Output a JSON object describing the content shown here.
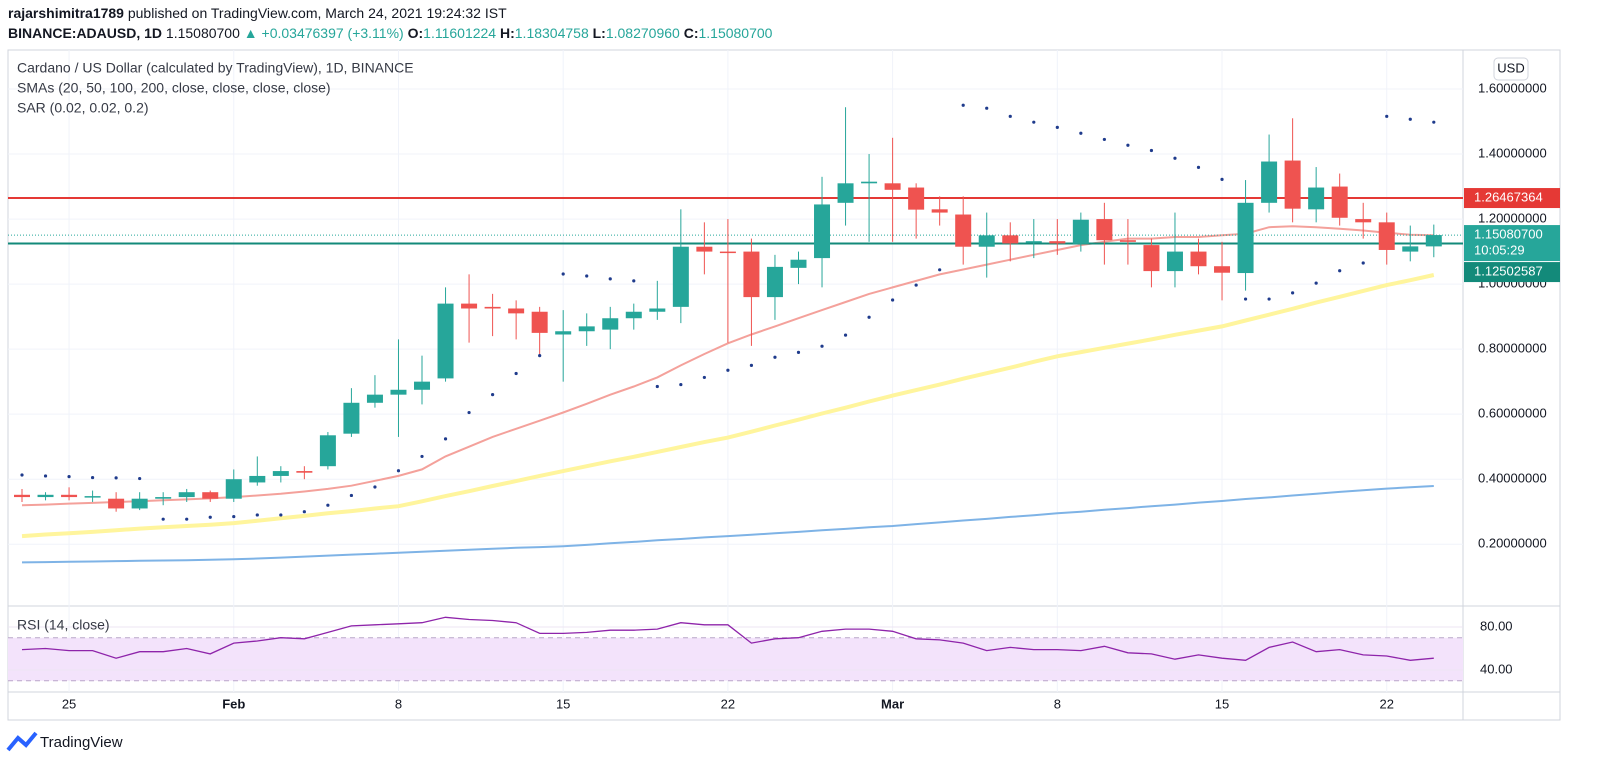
{
  "header": {
    "author": "rajarshimitra1789",
    "published": "published on TradingView.com, March 24, 2021 19:24:32 IST",
    "symbol": "BINANCE:ADAUSD, 1D",
    "last": "1.15080700",
    "arrow": "▲",
    "change": "+0.03476397 (+3.11%)",
    "o_label": "O:",
    "o": "1.11601224",
    "h_label": "H:",
    "h": "1.18304758",
    "l_label": "L:",
    "l": "1.08270960",
    "c_label": "C:",
    "c": "1.15080700"
  },
  "currency": "USD",
  "footer": {
    "brand": "TradingView"
  },
  "chart_data": [
    {
      "type": "candlestick",
      "title": "Cardano / US Dollar (calculated by TradingView), 1D, BINANCE",
      "indicators": [
        "SMAs (20, 50, 100, 200, close, close, close, close)",
        "SAR (0.02, 0.02, 0.2)"
      ],
      "categories": [
        null,
        null,
        "25",
        null,
        null,
        null,
        null,
        null,
        null,
        "Feb",
        null,
        null,
        null,
        null,
        null,
        null,
        "8",
        null,
        null,
        null,
        null,
        null,
        null,
        "15",
        null,
        null,
        null,
        null,
        null,
        null,
        "22",
        null,
        null,
        null,
        null,
        null,
        null,
        "Mar",
        null,
        null,
        null,
        null,
        null,
        null,
        "8",
        null,
        null,
        null,
        null,
        null,
        null,
        "15",
        null,
        null,
        null,
        null,
        null,
        null,
        "22",
        null,
        null
      ],
      "open": [
        0.352,
        0.345,
        0.352,
        0.345,
        0.34,
        0.31,
        0.34,
        0.345,
        0.36,
        0.34,
        0.39,
        0.41,
        0.425,
        0.44,
        0.54,
        0.635,
        0.66,
        0.675,
        0.71,
        0.94,
        0.93,
        0.925,
        0.915,
        0.845,
        0.855,
        0.86,
        0.895,
        0.915,
        0.93,
        1.115,
        1.1,
        1.1,
        0.96,
        1.05,
        1.08,
        1.25,
        1.31,
        1.31,
        1.297,
        1.23,
        1.214,
        1.115,
        1.15,
        1.13,
        1.132,
        1.124,
        1.2,
        1.135,
        1.12,
        1.04,
        1.1,
        1.055,
        1.034,
        1.25,
        1.38,
        1.23,
        1.3,
        1.2,
        1.19,
        1.1,
        1.11601224
      ],
      "high": [
        0.37,
        0.36,
        0.375,
        0.365,
        0.36,
        0.36,
        0.36,
        0.37,
        0.365,
        0.43,
        0.47,
        0.44,
        0.44,
        0.545,
        0.68,
        0.72,
        0.83,
        0.78,
        0.99,
        1.03,
        0.97,
        0.95,
        0.93,
        0.92,
        0.91,
        0.93,
        0.94,
        1.01,
        1.23,
        1.19,
        1.2,
        1.14,
        1.09,
        1.1,
        1.33,
        1.544,
        1.4,
        1.45,
        1.31,
        1.27,
        1.27,
        1.22,
        1.19,
        1.2,
        1.2,
        1.22,
        1.25,
        1.2,
        1.14,
        1.22,
        1.14,
        1.13,
        1.32,
        1.46,
        1.51,
        1.36,
        1.34,
        1.25,
        1.22,
        1.18,
        1.18304758
      ],
      "low": [
        0.33,
        0.335,
        0.335,
        0.33,
        0.3,
        0.305,
        0.32,
        0.33,
        0.33,
        0.33,
        0.38,
        0.39,
        0.4,
        0.43,
        0.53,
        0.62,
        0.53,
        0.63,
        0.7,
        0.82,
        0.84,
        0.83,
        0.78,
        0.7,
        0.81,
        0.8,
        0.86,
        0.89,
        0.88,
        1.03,
        0.82,
        0.81,
        0.89,
        1.0,
        0.99,
        1.18,
        1.13,
        1.13,
        1.14,
        1.18,
        1.06,
        1.02,
        1.07,
        1.08,
        1.09,
        1.1,
        1.06,
        1.06,
        0.99,
        0.99,
        1.03,
        0.95,
        0.98,
        1.22,
        1.19,
        1.19,
        1.18,
        1.14,
        1.06,
        1.07,
        1.0827096
      ],
      "close": [
        0.345,
        0.352,
        0.345,
        0.348,
        0.31,
        0.34,
        0.345,
        0.36,
        0.34,
        0.4,
        0.41,
        0.425,
        0.42,
        0.535,
        0.635,
        0.66,
        0.675,
        0.7,
        0.94,
        0.925,
        0.925,
        0.91,
        0.85,
        0.855,
        0.87,
        0.895,
        0.915,
        0.925,
        1.115,
        1.1,
        1.098,
        0.96,
        1.053,
        1.075,
        1.245,
        1.31,
        1.315,
        1.29,
        1.229,
        1.22,
        1.115,
        1.15,
        1.125,
        1.132,
        1.125,
        1.198,
        1.135,
        1.13,
        1.04,
        1.1,
        1.055,
        1.035,
        1.25,
        1.377,
        1.232,
        1.297,
        1.204,
        1.19,
        1.105,
        1.116,
        1.150807
      ],
      "up_color": "#26a69a",
      "down_color": "#ef5350",
      "series": [
        {
          "type": "line",
          "color": "#f4a19b",
          "width": 2,
          "values": [
            0.32,
            0.322,
            0.325,
            0.327,
            0.33,
            0.332,
            0.335,
            0.338,
            0.341,
            0.345,
            0.35,
            0.355,
            0.362,
            0.37,
            0.38,
            0.395,
            0.41,
            0.43,
            0.47,
            0.5,
            0.53,
            0.555,
            0.58,
            0.605,
            0.632,
            0.66,
            0.685,
            0.713,
            0.75,
            0.785,
            0.818,
            0.845,
            0.87,
            0.895,
            0.92,
            0.945,
            0.97,
            0.99,
            1.01,
            1.03,
            1.045,
            1.06,
            1.075,
            1.09,
            1.105,
            1.12,
            1.13,
            1.14,
            1.14,
            1.145,
            1.145,
            1.15,
            1.155,
            1.175,
            1.178,
            1.175,
            1.17,
            1.165,
            1.158,
            1.152,
            1.15
          ]
        },
        {
          "type": "line",
          "color": "#fff59d",
          "width": 4,
          "values": [
            0.225,
            0.23,
            0.234,
            0.238,
            0.243,
            0.248,
            0.252,
            0.256,
            0.26,
            0.265,
            0.272,
            0.28,
            0.287,
            0.295,
            0.302,
            0.31,
            0.317,
            0.332,
            0.348,
            0.363,
            0.379,
            0.394,
            0.41,
            0.425,
            0.44,
            0.455,
            0.469,
            0.484,
            0.499,
            0.514,
            0.528,
            0.546,
            0.565,
            0.583,
            0.602,
            0.62,
            0.639,
            0.657,
            0.674,
            0.691,
            0.709,
            0.726,
            0.743,
            0.761,
            0.778,
            0.791,
            0.804,
            0.817,
            0.83,
            0.844,
            0.857,
            0.87,
            0.888,
            0.906,
            0.924,
            0.943,
            0.961,
            0.979,
            0.997,
            1.012,
            1.028
          ]
        },
        {
          "type": "line",
          "color": "#7eb3e6",
          "width": 2,
          "values": [
            0.144,
            0.145,
            0.146,
            0.147,
            0.148,
            0.149,
            0.15,
            0.151,
            0.152,
            0.154,
            0.156,
            0.159,
            0.162,
            0.165,
            0.168,
            0.171,
            0.174,
            0.177,
            0.18,
            0.183,
            0.186,
            0.189,
            0.191,
            0.194,
            0.198,
            0.203,
            0.207,
            0.212,
            0.216,
            0.221,
            0.225,
            0.229,
            0.234,
            0.238,
            0.243,
            0.247,
            0.252,
            0.256,
            0.262,
            0.267,
            0.273,
            0.278,
            0.284,
            0.289,
            0.295,
            0.3,
            0.306,
            0.311,
            0.317,
            0.322,
            0.328,
            0.333,
            0.339,
            0.344,
            0.35,
            0.355,
            0.361,
            0.366,
            0.371,
            0.375,
            0.379
          ]
        },
        {
          "type": "dots",
          "color": "#1f3b8c",
          "values": [
            0.413,
            0.41,
            0.408,
            0.405,
            0.404,
            0.402,
            0.277,
            0.277,
            0.283,
            0.285,
            0.29,
            0.29,
            0.3,
            0.32,
            0.35,
            0.376,
            0.426,
            0.47,
            0.524,
            0.605,
            0.66,
            0.725,
            0.78,
            1.031,
            1.025,
            1.016,
            1.01,
            0.685,
            0.691,
            0.713,
            0.735,
            0.75,
            0.775,
            0.79,
            0.809,
            0.843,
            0.898,
            0.951,
            0.997,
            1.044,
            1.55,
            1.541,
            1.516,
            1.498,
            1.482,
            1.464,
            1.445,
            1.427,
            1.411,
            1.387,
            1.359,
            1.322,
            0.954,
            0.954,
            0.973,
            1.003,
            1.041,
            1.065,
            1.516,
            1.507,
            1.498
          ]
        }
      ],
      "hlines": [
        {
          "value": 1.26467364,
          "color": "#e53935"
        },
        {
          "value": 1.12502587,
          "color": "#138a7a"
        }
      ],
      "price_label": {
        "value": 1.150807,
        "label": "1.15080700",
        "countdown": "10:05:29",
        "color": "#26a69a"
      },
      "ylim": [
        0.01,
        1.72
      ],
      "yticks": [
        {
          "value": 0.2,
          "label": "0.20000000"
        },
        {
          "value": 0.4,
          "label": "0.40000000"
        },
        {
          "value": 0.6,
          "label": "0.60000000"
        },
        {
          "value": 0.8,
          "label": "0.80000000"
        },
        {
          "value": 1.0,
          "label": "1.00000000"
        },
        {
          "value": 1.2,
          "label": "1.20000000"
        },
        {
          "value": 1.4,
          "label": "1.40000000"
        },
        {
          "value": 1.6,
          "label": "1.60000000"
        }
      ],
      "grid": true
    },
    {
      "type": "line",
      "title": "RSI (14, close)",
      "color": "#8e24aa",
      "values": [
        59,
        60,
        58,
        58,
        51,
        57,
        57,
        60,
        55,
        65,
        67,
        70,
        69,
        75,
        81,
        82,
        83,
        84,
        89,
        87,
        86,
        84,
        74,
        74,
        75,
        77,
        77,
        78,
        84,
        82,
        82,
        65,
        69,
        70,
        76,
        78,
        78,
        76,
        69,
        68,
        65,
        58,
        61,
        59,
        59,
        58,
        62,
        56,
        55,
        50,
        54,
        51,
        49,
        61,
        66,
        57,
        59,
        54,
        53,
        49,
        51
      ],
      "band": [
        30,
        70
      ],
      "band_color": "#f3e3fb",
      "ylim": [
        21.4,
        95.8
      ],
      "yticks": [
        {
          "value": 40,
          "label": "40.00"
        },
        {
          "value": 80,
          "label": "80.00"
        }
      ],
      "grid": true
    }
  ]
}
